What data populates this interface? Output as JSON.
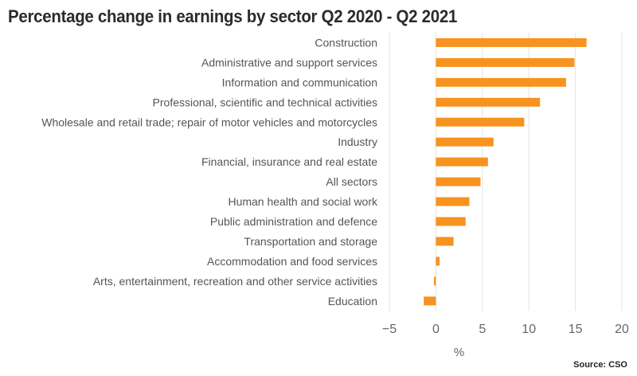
{
  "chart_data": {
    "type": "bar",
    "orientation": "horizontal",
    "title": "Percentage change in earnings by sector Q2 2020 - Q2 2021",
    "xlabel": "%",
    "ylabel": "",
    "xlim": [
      -5,
      20
    ],
    "xticks": [
      -5,
      0,
      5,
      10,
      15,
      20
    ],
    "xtick_labels": [
      "−5",
      "0",
      "5",
      "10",
      "15",
      "20"
    ],
    "grid": true,
    "categories": [
      "Construction",
      "Administrative and support services",
      "Information and communication",
      "Professional, scientific and technical activities",
      "Wholesale and retail trade; repair of motor vehicles and motorcycles",
      "Industry",
      "Financial, insurance and real estate",
      "All sectors",
      "Human health and social work",
      "Public administration and defence",
      "Transportation and storage",
      "Accommodation and food services",
      "Arts, entertainment, recreation and other service activities",
      "Education"
    ],
    "values": [
      16.2,
      14.9,
      14.0,
      11.2,
      9.5,
      6.2,
      5.6,
      4.8,
      3.6,
      3.2,
      1.9,
      0.4,
      -0.2,
      -1.3
    ],
    "bar_color": "#F7931E",
    "source": "Source: CSO"
  }
}
